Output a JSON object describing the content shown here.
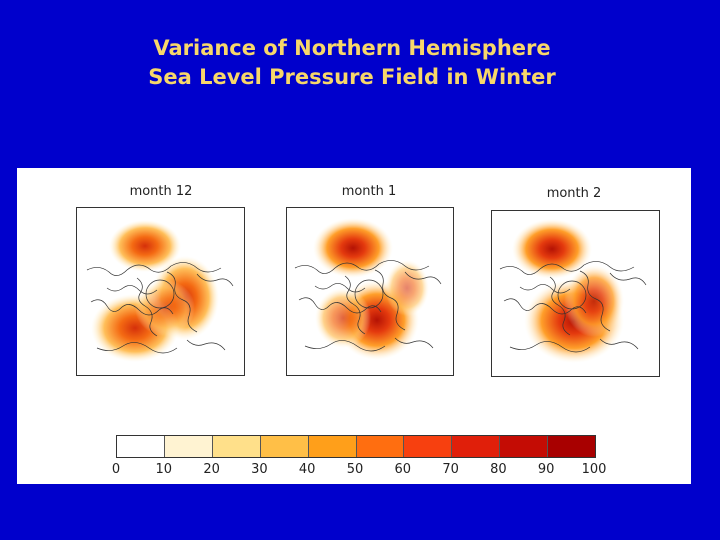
{
  "title": {
    "line1": "Variance of Northern Hemisphere",
    "line2": "Sea Level Pressure Field in Winter"
  },
  "maps": [
    {
      "label": "month 12"
    },
    {
      "label": "month 1"
    },
    {
      "label": "month 2"
    }
  ],
  "colorbar": {
    "ticks": [
      "0",
      "10",
      "20",
      "30",
      "40",
      "50",
      "60",
      "70",
      "80",
      "90",
      "100"
    ],
    "colors": [
      "#ffffff",
      "#fff3d2",
      "#ffe08a",
      "#ffbf47",
      "#ff9f1a",
      "#ff6e10",
      "#f7400f",
      "#e01f0a",
      "#c40c04",
      "#a80000"
    ]
  }
}
